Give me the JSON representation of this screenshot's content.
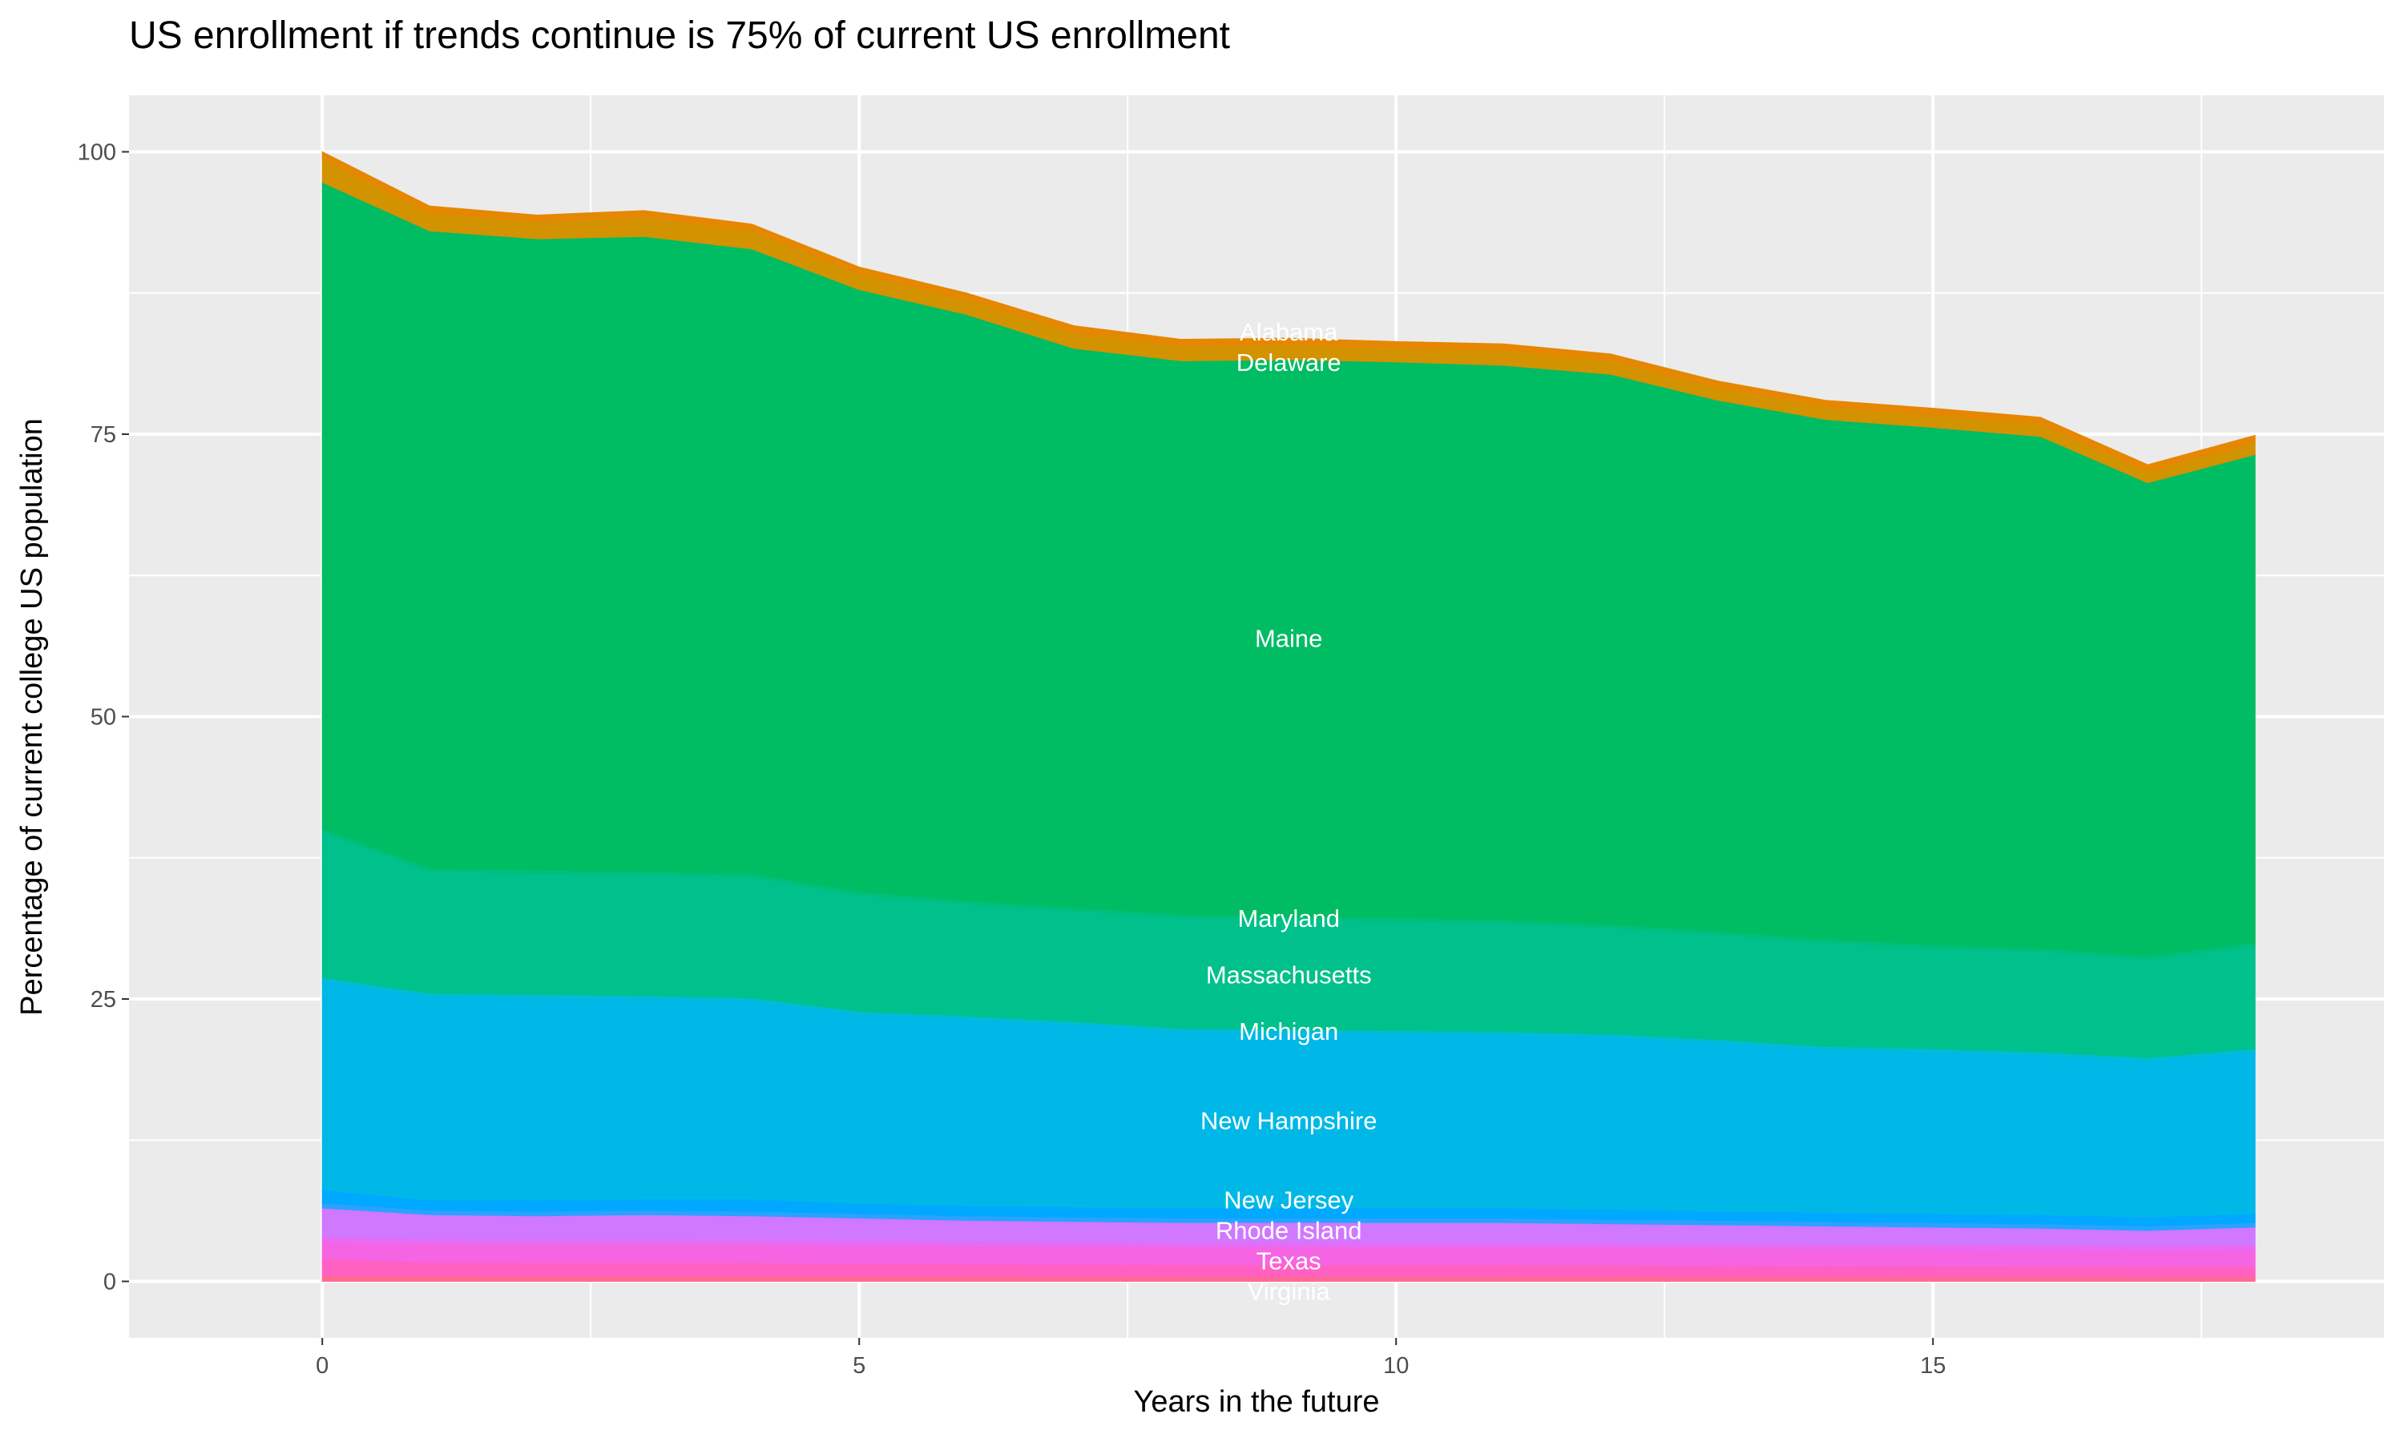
{
  "chart_data": {
    "type": "area",
    "stacked": true,
    "title": "US enrollment if trends continue is 75% of current US enrollment",
    "xlabel": "Years in the future",
    "ylabel": "Percentage of current college US population",
    "xlim": [
      -1.8,
      19.2
    ],
    "ylim": [
      -5,
      105
    ],
    "x_ticks": [
      0,
      5,
      10,
      15
    ],
    "y_ticks": [
      0,
      25,
      50,
      75,
      100
    ],
    "grid": true,
    "label_x": 9,
    "x": [
      0,
      1,
      2,
      3,
      4,
      5,
      6,
      7,
      8,
      9,
      10,
      11,
      12,
      13,
      14,
      15,
      16,
      17,
      18
    ],
    "series": [
      {
        "name": "Virginia",
        "color": "#FF6C91",
        "values": [
          0.5,
          0.48,
          0.47,
          0.47,
          0.46,
          0.45,
          0.44,
          0.43,
          0.42,
          0.42,
          0.42,
          0.42,
          0.42,
          0.41,
          0.41,
          0.41,
          0.4,
          0.4,
          0.4
        ]
      },
      {
        "color": "#FF61C3",
        "values": [
          1.5,
          1.2,
          1.2,
          1.2,
          1.2,
          1.15,
          1.1,
          1.08,
          1.05,
          1.05,
          1.05,
          1.05,
          1.03,
          1.0,
          0.98,
          0.97,
          0.95,
          0.92,
          0.95
        ]
      },
      {
        "name": "Texas",
        "color": "#F564E3",
        "values": [
          1.45,
          1.55,
          1.55,
          1.55,
          1.55,
          1.55,
          1.55,
          1.55,
          1.53,
          1.53,
          1.53,
          1.53,
          1.5,
          1.5,
          1.48,
          1.47,
          1.45,
          1.43,
          1.45
        ]
      },
      {
        "color": "#E76BF3",
        "values": [
          0.55,
          0.5,
          0.5,
          0.5,
          0.5,
          0.48,
          0.47,
          0.46,
          0.46,
          0.46,
          0.46,
          0.46,
          0.45,
          0.45,
          0.44,
          0.44,
          0.43,
          0.42,
          0.43
        ]
      },
      {
        "name": "Rhode Island",
        "color": "#D078FF",
        "values": [
          2.5,
          2.17,
          2.08,
          2.18,
          2.09,
          1.97,
          1.84,
          1.78,
          1.74,
          1.74,
          1.74,
          1.74,
          1.7,
          1.64,
          1.59,
          1.51,
          1.47,
          1.33,
          1.57
        ]
      },
      {
        "color": "#2AA2FF",
        "values": [
          0.45,
          0.4,
          0.4,
          0.4,
          0.4,
          0.4,
          0.4,
          0.4,
          0.4,
          0.4,
          0.4,
          0.4,
          0.4,
          0.4,
          0.4,
          0.4,
          0.4,
          0.4,
          0.4
        ]
      },
      {
        "name": "New Jersey",
        "color": "#00A9FF",
        "values": [
          1.15,
          0.9,
          1.0,
          1.0,
          1.1,
          0.9,
          0.9,
          0.9,
          0.9,
          0.9,
          0.9,
          0.9,
          0.9,
          0.8,
          0.8,
          0.8,
          0.8,
          0.8,
          0.8
        ]
      },
      {
        "name": "New Hampshire",
        "color": "#00B8E7",
        "values": [
          18.5,
          18.0,
          17.9,
          17.7,
          17.5,
          16.7,
          16.5,
          16.1,
          15.6,
          15.5,
          15.4,
          15.3,
          15.2,
          14.9,
          14.4,
          14.3,
          14.1,
          13.8,
          14.3
        ]
      },
      {
        "name": "Michigan",
        "color": "#00BCD8",
        "values": [
          0.3,
          0.3,
          0.3,
          0.3,
          0.3,
          0.3,
          0.3,
          0.3,
          0.3,
          0.3,
          0.3,
          0.3,
          0.3,
          0.3,
          0.3,
          0.3,
          0.3,
          0.3,
          0.3
        ]
      },
      {
        "name": "Massachusetts",
        "color": "#00C08B",
        "values": [
          12.9,
          10.8,
          10.7,
          10.7,
          10.7,
          10.3,
          9.9,
          9.8,
          9.8,
          9.7,
          9.7,
          9.6,
          9.4,
          9.3,
          9.2,
          8.9,
          8.9,
          8.7,
          9.1
        ]
      },
      {
        "name": "Maryland",
        "color": "#00BF7D",
        "values": [
          0.3,
          0.3,
          0.3,
          0.3,
          0.3,
          0.3,
          0.3,
          0.3,
          0.3,
          0.3,
          0.3,
          0.3,
          0.3,
          0.3,
          0.3,
          0.3,
          0.3,
          0.3,
          0.3
        ]
      },
      {
        "name": "Maine",
        "color": "#00BC62",
        "values": [
          57.2,
          56.4,
          55.9,
          56.2,
          55.3,
          53.3,
          51.9,
          49.5,
          49.0,
          49.3,
          49.2,
          49.1,
          48.7,
          47.0,
          46.0,
          45.8,
          45.3,
          41.9,
          43.2
        ]
      },
      {
        "name": "Delaware",
        "color": "#D39200",
        "values": [
          2.1,
          1.6,
          1.5,
          1.7,
          1.6,
          1.4,
          1.3,
          1.4,
          1.3,
          1.3,
          1.2,
          1.3,
          1.2,
          1.1,
          1.1,
          1.1,
          1.1,
          1.0,
          1.1
        ]
      },
      {
        "name": "Alabama",
        "color": "#E58700",
        "values": [
          0.6,
          0.6,
          0.6,
          0.6,
          0.6,
          0.6,
          0.6,
          0.6,
          0.6,
          0.6,
          0.6,
          0.6,
          0.6,
          0.6,
          0.6,
          0.6,
          0.6,
          0.6,
          0.6
        ]
      }
    ],
    "colors": {
      "panel": "#EBEBEB",
      "grid": "#FFFFFF",
      "label_text": "#FFFFFF"
    }
  }
}
